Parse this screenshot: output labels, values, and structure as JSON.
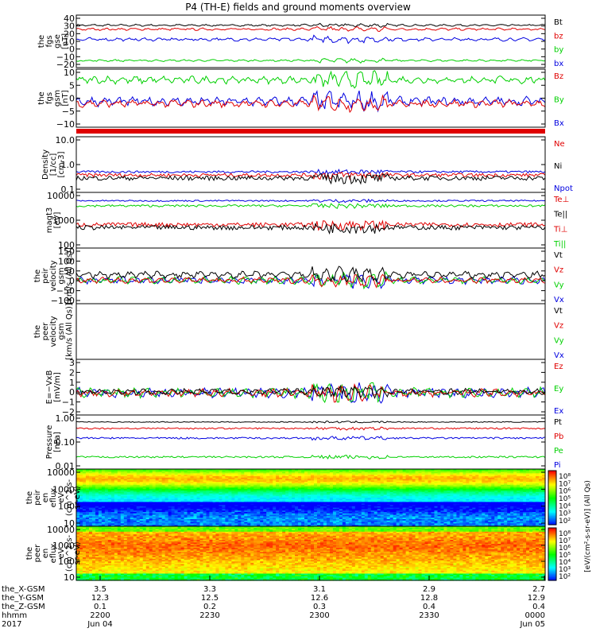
{
  "title": "P4 (TH-E) fields and ground moments overview",
  "colors": {
    "black": "#000000",
    "red": "#e00000",
    "green": "#00d000",
    "blue": "#0000e0"
  },
  "panels": [
    {
      "id": "fgs-gse",
      "ylabel": [
        "the",
        "fgs",
        "gse",
        "[nT]"
      ],
      "ticks": [
        "40",
        "30",
        "20",
        "10",
        "0",
        "−10",
        "−20"
      ],
      "ylim": [
        -25,
        42
      ],
      "legend": [
        {
          "t": "Bt",
          "c": "black"
        },
        {
          "t": "bz",
          "c": "red"
        },
        {
          "t": "by",
          "c": "green"
        },
        {
          "t": "bx",
          "c": "blue"
        }
      ],
      "series": [
        {
          "c": "black",
          "base": 29,
          "amp": 1.5
        },
        {
          "c": "red",
          "base": 24,
          "amp": 1.8
        },
        {
          "c": "blue",
          "base": 11,
          "amp": 2.5
        },
        {
          "c": "green",
          "base": -16,
          "amp": 1.5
        }
      ]
    },
    {
      "id": "fgs-gsm",
      "ylabel": [
        "the",
        "fgs",
        "gsm",
        "[nT]"
      ],
      "ticks": [
        "10",
        "5",
        "0",
        "−5",
        "−10"
      ],
      "ylim": [
        -15,
        12
      ],
      "legend": [
        {
          "t": "Bz",
          "c": "red"
        },
        {
          "t": "By",
          "c": "green"
        },
        {
          "t": "Bx",
          "c": "blue"
        }
      ],
      "series": [
        {
          "c": "green",
          "base": 7,
          "amp": 2
        },
        {
          "c": "blue",
          "base": -3,
          "amp": 2.5
        },
        {
          "c": "red",
          "base": -4,
          "amp": 2
        }
      ]
    },
    {
      "id": "density",
      "ylabel": [
        "Density",
        "[1/cc]",
        "[cm-3]"
      ],
      "ticks": [
        "10.0",
        "1.0",
        "0.1"
      ],
      "ylim": [
        0.1,
        10
      ],
      "log": true,
      "legend": [
        {
          "t": "Ne",
          "c": "red"
        },
        {
          "t": "Ni",
          "c": "black"
        },
        {
          "t": "Npot",
          "c": "blue"
        }
      ],
      "series": [
        {
          "c": "blue",
          "base": 0.55,
          "amp": 0.05
        },
        {
          "c": "red",
          "base": 0.42,
          "amp": 0.06
        },
        {
          "c": "black",
          "base": 0.33,
          "amp": 0.06
        }
      ]
    },
    {
      "id": "temperature",
      "ylabel": [
        "magt3",
        "[eV]"
      ],
      "ticks": [
        "10000",
        "1000",
        "100"
      ],
      "ylim": [
        100,
        10000
      ],
      "log": true,
      "legend": [
        {
          "t": "Te⊥",
          "c": "red"
        },
        {
          "t": "Te||",
          "c": "black"
        },
        {
          "t": "Ti⊥",
          "c": "red"
        },
        {
          "t": "Ti||",
          "c": "green"
        }
      ],
      "series": [
        {
          "c": "blue",
          "base": 5000,
          "amp": 300
        },
        {
          "c": "green",
          "base": 3300,
          "amp": 300
        },
        {
          "c": "red",
          "base": 700,
          "amp": 120
        },
        {
          "c": "black",
          "base": 550,
          "amp": 100
        }
      ]
    },
    {
      "id": "peir-vel",
      "ylabel": [
        "the",
        "peir",
        "velocity",
        "gsm",
        "[km/s (All Qs)]"
      ],
      "ticks": [
        "150",
        "100",
        "50",
        "0",
        "−50",
        "−100"
      ],
      "ylim": [
        -100,
        150
      ],
      "legend": [
        {
          "t": "Vt",
          "c": "black"
        },
        {
          "t": "Vz",
          "c": "red"
        },
        {
          "t": "Vy",
          "c": "green"
        },
        {
          "t": "Vx",
          "c": "blue"
        }
      ],
      "series": [
        {
          "c": "blue",
          "base": 5,
          "amp": 18
        },
        {
          "c": "green",
          "base": 5,
          "amp": 18
        },
        {
          "c": "red",
          "base": 5,
          "amp": 15
        },
        {
          "c": "black",
          "base": 30,
          "amp": 18
        }
      ]
    },
    {
      "id": "peer-vel",
      "ylabel": [
        "the",
        "peer",
        "velocity",
        "gsm",
        "[km/s (All Qs)]"
      ],
      "ticks": [],
      "ylim": [
        0,
        1
      ],
      "legend": [
        {
          "t": "Vt",
          "c": "black"
        },
        {
          "t": "Vz",
          "c": "red"
        },
        {
          "t": "Vy",
          "c": "green"
        },
        {
          "t": "Vx",
          "c": "blue"
        }
      ],
      "series": []
    },
    {
      "id": "exb",
      "ylabel": [
        "E=−VxB",
        "[mV/m]"
      ],
      "ticks": [
        "3",
        "2",
        "1",
        "0",
        "−1",
        "−2"
      ],
      "ylim": [
        -2,
        3
      ],
      "legend": [
        {
          "t": "Ez",
          "c": "red"
        },
        {
          "t": "Ey",
          "c": "green"
        },
        {
          "t": "Ex",
          "c": "blue"
        }
      ],
      "series": [
        {
          "c": "blue",
          "base": 0,
          "amp": 0.5
        },
        {
          "c": "green",
          "base": 0,
          "amp": 0.5
        },
        {
          "c": "red",
          "base": 0,
          "amp": 0.4
        },
        {
          "c": "black",
          "base": 0.1,
          "amp": 0.3
        }
      ]
    },
    {
      "id": "pressure",
      "ylabel": [
        "Pressure",
        "[nPa]"
      ],
      "ticks": [
        "1.00",
        "0.10",
        "0.01"
      ],
      "ylim": [
        0.01,
        1.0
      ],
      "log": true,
      "legend": [
        {
          "t": "Pt",
          "c": "black"
        },
        {
          "t": "Pb",
          "c": "red"
        },
        {
          "t": "Pe",
          "c": "green"
        },
        {
          "t": "Pi",
          "c": "blue"
        }
      ],
      "series": [
        {
          "c": "black",
          "base": 0.55,
          "amp": 0.02
        },
        {
          "c": "red",
          "base": 0.32,
          "amp": 0.02
        },
        {
          "c": "blue",
          "base": 0.14,
          "amp": 0.01
        },
        {
          "c": "green",
          "base": 0.028,
          "amp": 0.002
        }
      ]
    },
    {
      "id": "peir-eflux",
      "ylabel": [
        "the",
        "peir",
        "en",
        "eflux",
        "eV",
        "(cm^2-s-",
        "sr-eV)"
      ],
      "ticks": [
        "10000",
        "1000",
        "100",
        "10"
      ],
      "ylim": [
        5,
        20000
      ],
      "spec": "ion"
    },
    {
      "id": "peer-eflux",
      "ylabel": [
        "the",
        "peer",
        "en",
        "eflux",
        "eV",
        "(cm^2-s-",
        "sr-eV)"
      ],
      "ticks": [
        "10000",
        "1000",
        "100",
        "10"
      ],
      "ylim": [
        5,
        20000
      ],
      "spec": "electron"
    }
  ],
  "colorbar": {
    "ion_ticks": [
      "10⁸",
      "10⁷",
      "10⁶",
      "10⁵",
      "10⁴",
      "10³",
      "10²"
    ],
    "el_ticks": [
      "10⁸",
      "10⁷",
      "10⁶",
      "10⁵",
      "10⁴",
      "10³",
      "10²"
    ],
    "label": "[eV/(cm²-s-sr-eV)] (All Qs)"
  },
  "x_rows": [
    {
      "label": "the_X-GSM",
      "values": [
        "3.5",
        "3.3",
        "3.1",
        "2.9",
        "2.7"
      ]
    },
    {
      "label": "the_Y-GSM",
      "values": [
        "12.3",
        "12.5",
        "12.6",
        "12.8",
        "12.9"
      ]
    },
    {
      "label": "the_Z-GSM",
      "values": [
        "0.1",
        "0.2",
        "0.3",
        "0.4",
        "0.4"
      ]
    },
    {
      "label": "hhmm",
      "values": [
        "2200",
        "2230",
        "2300",
        "2330",
        "0000"
      ]
    },
    {
      "label": "2017",
      "values": [
        "Jun 04",
        "",
        "",
        "",
        "Jun 05"
      ]
    }
  ],
  "chart_data": {
    "type": "line",
    "title": "P4 (TH-E) fields and ground moments overview",
    "x": [
      "2200",
      "2230",
      "2300",
      "2330",
      "0000"
    ],
    "series": [
      {
        "name": "Bt",
        "values": [
          29,
          29,
          30,
          29,
          29
        ]
      },
      {
        "name": "bz",
        "values": [
          24,
          24,
          25,
          24,
          24
        ]
      },
      {
        "name": "by",
        "values": [
          -16,
          -16,
          -16,
          -16,
          -16
        ]
      },
      {
        "name": "bx",
        "values": [
          11,
          11,
          11,
          11,
          11
        ]
      },
      {
        "name": "Npot",
        "values": [
          0.55,
          0.55,
          0.6,
          0.55,
          0.55
        ]
      },
      {
        "name": "Pt",
        "values": [
          0.55,
          0.55,
          0.55,
          0.55,
          0.55
        ]
      },
      {
        "name": "Pb",
        "values": [
          0.32,
          0.32,
          0.32,
          0.32,
          0.32
        ]
      },
      {
        "name": "Pe",
        "values": [
          0.028,
          0.028,
          0.028,
          0.028,
          0.028
        ]
      },
      {
        "name": "Pi",
        "values": [
          0.14,
          0.14,
          0.14,
          0.14,
          0.14
        ]
      }
    ]
  }
}
